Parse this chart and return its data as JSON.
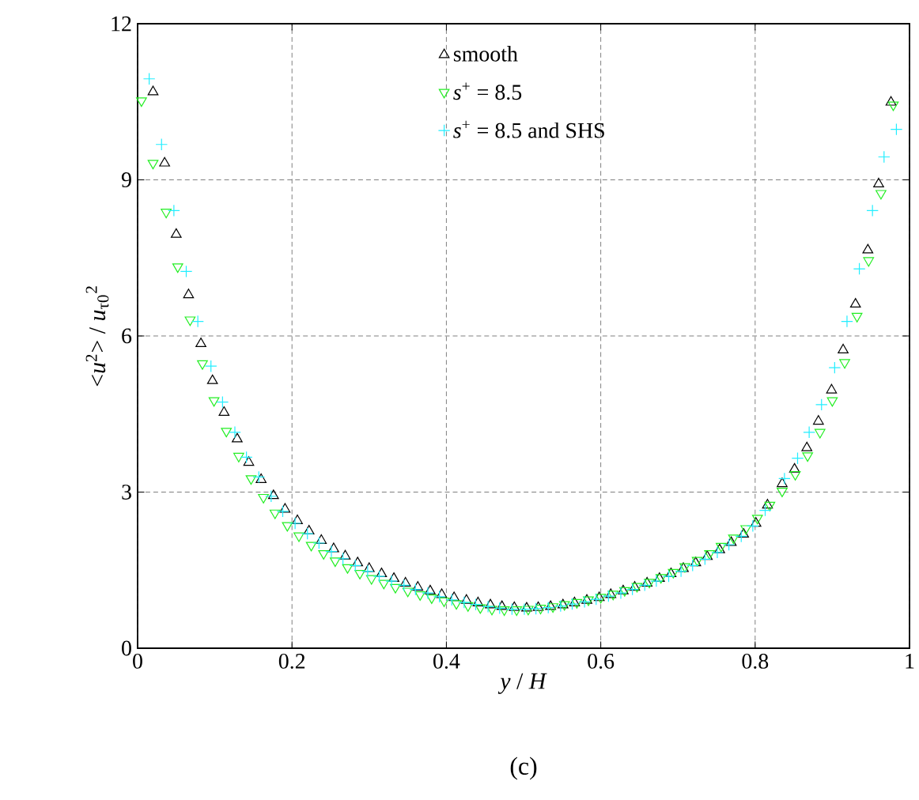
{
  "chart_data": {
    "type": "scatter",
    "xlabel": "*y* / *H*",
    "ylabel": "<*u*$^{2}$> / *u*$_{τ0}$$^{2}$",
    "annotations": [
      "(c)"
    ],
    "xlim": [
      0,
      1
    ],
    "ylim": [
      0,
      12
    ],
    "xticks": [
      0,
      0.2,
      0.4,
      0.6,
      0.8,
      1
    ],
    "yticks": [
      0,
      3,
      6,
      9,
      12
    ],
    "grid": true,
    "legend": "top",
    "series": [
      {
        "name": "smooth",
        "color": "#000000",
        "marker": "triangle",
        "x": [
          0.02,
          0.035,
          0.05,
          0.066,
          0.082,
          0.097,
          0.112,
          0.129,
          0.144,
          0.16,
          0.176,
          0.191,
          0.207,
          0.222,
          0.238,
          0.254,
          0.269,
          0.285,
          0.3,
          0.316,
          0.332,
          0.347,
          0.363,
          0.379,
          0.394,
          0.41,
          0.426,
          0.441,
          0.457,
          0.472,
          0.488,
          0.504,
          0.519,
          0.535,
          0.551,
          0.566,
          0.582,
          0.598,
          0.613,
          0.629,
          0.644,
          0.66,
          0.676,
          0.691,
          0.707,
          0.723,
          0.738,
          0.754,
          0.769,
          0.785,
          0.801,
          0.816,
          0.835,
          0.851,
          0.867,
          0.882,
          0.899,
          0.914,
          0.93,
          0.946,
          0.96,
          0.976
        ],
        "values": [
          10.69,
          9.32,
          7.95,
          6.79,
          5.85,
          5.14,
          4.53,
          4.02,
          3.57,
          3.24,
          2.93,
          2.67,
          2.45,
          2.25,
          2.07,
          1.91,
          1.77,
          1.64,
          1.53,
          1.43,
          1.34,
          1.25,
          1.17,
          1.1,
          1.03,
          0.97,
          0.92,
          0.87,
          0.83,
          0.8,
          0.78,
          0.77,
          0.78,
          0.8,
          0.83,
          0.87,
          0.92,
          0.97,
          1.03,
          1.1,
          1.17,
          1.25,
          1.34,
          1.43,
          1.53,
          1.64,
          1.76,
          1.89,
          2.03,
          2.19,
          2.4,
          2.75,
          3.16,
          3.44,
          3.85,
          4.36,
          4.96,
          5.73,
          6.61,
          7.65,
          8.92,
          10.49
        ]
      },
      {
        "name": "*s*$^{+}$ = 8.5",
        "color": "#22ee22",
        "marker": "triangle down",
        "x": [
          0.005,
          0.02,
          0.037,
          0.052,
          0.068,
          0.084,
          0.099,
          0.115,
          0.131,
          0.147,
          0.163,
          0.178,
          0.194,
          0.209,
          0.225,
          0.241,
          0.256,
          0.272,
          0.288,
          0.303,
          0.319,
          0.334,
          0.35,
          0.366,
          0.381,
          0.397,
          0.413,
          0.428,
          0.444,
          0.459,
          0.475,
          0.491,
          0.506,
          0.522,
          0.538,
          0.553,
          0.569,
          0.584,
          0.6,
          0.616,
          0.631,
          0.647,
          0.663,
          0.678,
          0.694,
          0.709,
          0.725,
          0.741,
          0.756,
          0.772,
          0.788,
          0.803,
          0.819,
          0.835,
          0.852,
          0.868,
          0.884,
          0.9,
          0.916,
          0.932,
          0.947,
          0.963,
          0.979
        ],
        "values": [
          10.52,
          9.32,
          8.38,
          7.33,
          6.31,
          5.47,
          4.76,
          4.17,
          3.69,
          3.26,
          2.9,
          2.6,
          2.36,
          2.16,
          1.98,
          1.82,
          1.68,
          1.55,
          1.44,
          1.34,
          1.25,
          1.17,
          1.1,
          1.03,
          0.97,
          0.91,
          0.86,
          0.82,
          0.78,
          0.75,
          0.74,
          0.74,
          0.75,
          0.77,
          0.8,
          0.84,
          0.88,
          0.93,
          0.98,
          1.04,
          1.11,
          1.19,
          1.27,
          1.36,
          1.46,
          1.57,
          1.69,
          1.82,
          1.96,
          2.12,
          2.3,
          2.5,
          2.75,
          3.02,
          3.34,
          3.7,
          4.15,
          4.76,
          5.49,
          6.38,
          7.45,
          8.74,
          10.44
        ]
      },
      {
        "name": "*s*$^{+}$ = 8.5 and SHS",
        "color": "#22eeff",
        "marker": "cross",
        "x": [
          0.015,
          0.031,
          0.047,
          0.063,
          0.078,
          0.095,
          0.11,
          0.126,
          0.141,
          0.157,
          0.173,
          0.188,
          0.204,
          0.22,
          0.235,
          0.251,
          0.266,
          0.282,
          0.298,
          0.313,
          0.329,
          0.345,
          0.36,
          0.376,
          0.391,
          0.407,
          0.423,
          0.438,
          0.454,
          0.469,
          0.485,
          0.501,
          0.516,
          0.532,
          0.548,
          0.563,
          0.579,
          0.594,
          0.61,
          0.626,
          0.641,
          0.657,
          0.672,
          0.688,
          0.704,
          0.719,
          0.735,
          0.751,
          0.766,
          0.782,
          0.797,
          0.813,
          0.838,
          0.855,
          0.87,
          0.886,
          0.903,
          0.919,
          0.935,
          0.952,
          0.967,
          0.983
        ],
        "values": [
          10.94,
          9.68,
          8.41,
          7.24,
          6.28,
          5.42,
          4.73,
          4.15,
          3.67,
          3.29,
          2.92,
          2.63,
          2.4,
          2.2,
          2.02,
          1.86,
          1.72,
          1.59,
          1.48,
          1.38,
          1.29,
          1.21,
          1.13,
          1.06,
          0.99,
          0.93,
          0.88,
          0.84,
          0.8,
          0.77,
          0.75,
          0.75,
          0.76,
          0.78,
          0.81,
          0.85,
          0.89,
          0.94,
          1.0,
          1.06,
          1.13,
          1.21,
          1.29,
          1.38,
          1.48,
          1.59,
          1.71,
          1.84,
          1.99,
          2.15,
          2.35,
          2.65,
          3.26,
          3.65,
          4.15,
          4.68,
          5.39,
          6.28,
          7.29,
          8.41,
          9.44,
          9.97
        ]
      }
    ]
  }
}
